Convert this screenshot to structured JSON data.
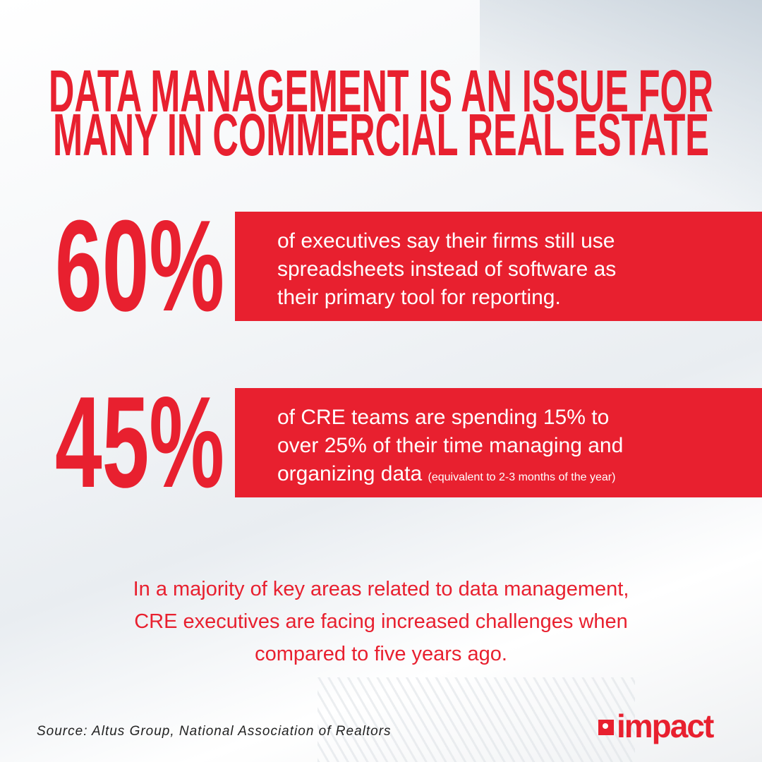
{
  "title": {
    "line1": "DATA MANAGEMENT IS AN ISSUE FOR",
    "line2": "MANY IN COMMERCIAL REAL ESTATE"
  },
  "stats": [
    {
      "value": "60%",
      "lines": [
        "of executives say their firms still use",
        "spreadsheets instead of software as",
        "their primary tool for reporting."
      ]
    },
    {
      "value": "45%",
      "lines": [
        "of CRE teams are spending 15% to",
        "over 25% of their time managing and",
        "organizing data"
      ],
      "note": "(equivalent to 2-3 months of the year)"
    }
  ],
  "summary": [
    "In a majority of key areas related to data management,",
    "CRE executives are facing increased challenges when",
    "compared to five years ago."
  ],
  "source": "Source: Altus Group, National Association of Realtors",
  "logo": {
    "text": "impact"
  },
  "colors": {
    "accent": "#e8202f"
  }
}
